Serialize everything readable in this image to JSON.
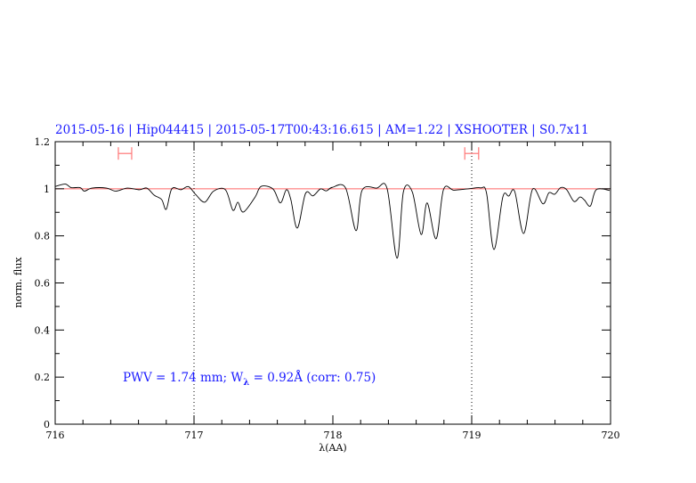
{
  "chart_data": {
    "type": "line",
    "title": "2015-05-16 | Hip044415 | 2015-05-17T00:43:16.615 | AM=1.22 | XSHOOTER | S0.7x11",
    "xlabel": "λ(AA)",
    "ylabel": "norm. flux",
    "xlim": [
      716,
      720
    ],
    "ylim": [
      0,
      1.2
    ],
    "x_ticks": [
      "716",
      "717",
      "718",
      "719",
      "720"
    ],
    "y_ticks": [
      "0",
      "0.2",
      "0.4",
      "0.6",
      "0.8",
      "1",
      "1.2"
    ],
    "grid": false,
    "annotation": {
      "prefix": "PWV = 1.74 mm; W",
      "sub": "λ",
      "suffix": " = 0.92Å (corr: 0.75)"
    },
    "continuum_level": 1.0,
    "dotted_markers_x": [
      717,
      719
    ],
    "intervals": [
      [
        716.455,
        716.551
      ],
      [
        718.95,
        719.05
      ]
    ],
    "interval_y": 1.15,
    "colors": {
      "spectrum": "#000000",
      "continuum": "#ff6666",
      "intervals": "#ff7777",
      "text": "#1a1aff"
    },
    "series": [
      {
        "points": [
          [
            716.0,
            1.01
          ],
          [
            716.073,
            1.02
          ],
          [
            716.115,
            1.005
          ],
          [
            716.18,
            1.005
          ],
          [
            716.21,
            0.99
          ],
          [
            716.265,
            1.003
          ],
          [
            716.37,
            1.003
          ],
          [
            716.436,
            0.99
          ],
          [
            716.52,
            1.003
          ],
          [
            716.607,
            0.996
          ],
          [
            716.66,
            1.003
          ],
          [
            716.713,
            0.973
          ],
          [
            716.767,
            0.954
          ],
          [
            716.8,
            0.913
          ],
          [
            716.84,
            1.0
          ],
          [
            716.906,
            0.996
          ],
          [
            716.96,
            1.009
          ],
          [
            717.013,
            0.975
          ],
          [
            717.077,
            0.943
          ],
          [
            717.141,
            0.99
          ],
          [
            717.226,
            0.996
          ],
          [
            717.28,
            0.909
          ],
          [
            717.316,
            0.943
          ],
          [
            717.355,
            0.901
          ],
          [
            717.44,
            0.965
          ],
          [
            717.483,
            1.01
          ],
          [
            717.569,
            0.999
          ],
          [
            717.622,
            0.94
          ],
          [
            717.665,
            0.996
          ],
          [
            717.697,
            0.955
          ],
          [
            717.744,
            0.833
          ],
          [
            717.803,
            0.98
          ],
          [
            717.857,
            0.97
          ],
          [
            717.91,
            0.999
          ],
          [
            717.953,
            0.991
          ],
          [
            717.996,
            1.006
          ],
          [
            718.092,
            1.003
          ],
          [
            718.167,
            0.822
          ],
          [
            718.21,
            0.993
          ],
          [
            718.316,
            1.003
          ],
          [
            718.391,
            1.0
          ],
          [
            718.462,
            0.705
          ],
          [
            718.508,
            0.987
          ],
          [
            718.572,
            0.987
          ],
          [
            718.636,
            0.806
          ],
          [
            718.679,
            0.94
          ],
          [
            718.744,
            0.788
          ],
          [
            718.797,
            0.997
          ],
          [
            718.872,
            0.994
          ],
          [
            718.979,
            1.0
          ],
          [
            719.064,
            1.004
          ],
          [
            719.107,
            0.981
          ],
          [
            719.16,
            0.742
          ],
          [
            719.224,
            0.965
          ],
          [
            719.267,
            0.969
          ],
          [
            719.31,
            0.988
          ],
          [
            719.374,
            0.81
          ],
          [
            719.438,
            0.998
          ],
          [
            719.513,
            0.936
          ],
          [
            719.556,
            0.983
          ],
          [
            719.598,
            0.977
          ],
          [
            719.641,
            1.005
          ],
          [
            719.684,
            0.996
          ],
          [
            719.737,
            0.946
          ],
          [
            719.78,
            0.965
          ],
          [
            719.812,
            0.952
          ],
          [
            719.855,
            0.927
          ],
          [
            719.897,
            0.996
          ],
          [
            719.994,
            0.993
          ]
        ]
      }
    ]
  }
}
